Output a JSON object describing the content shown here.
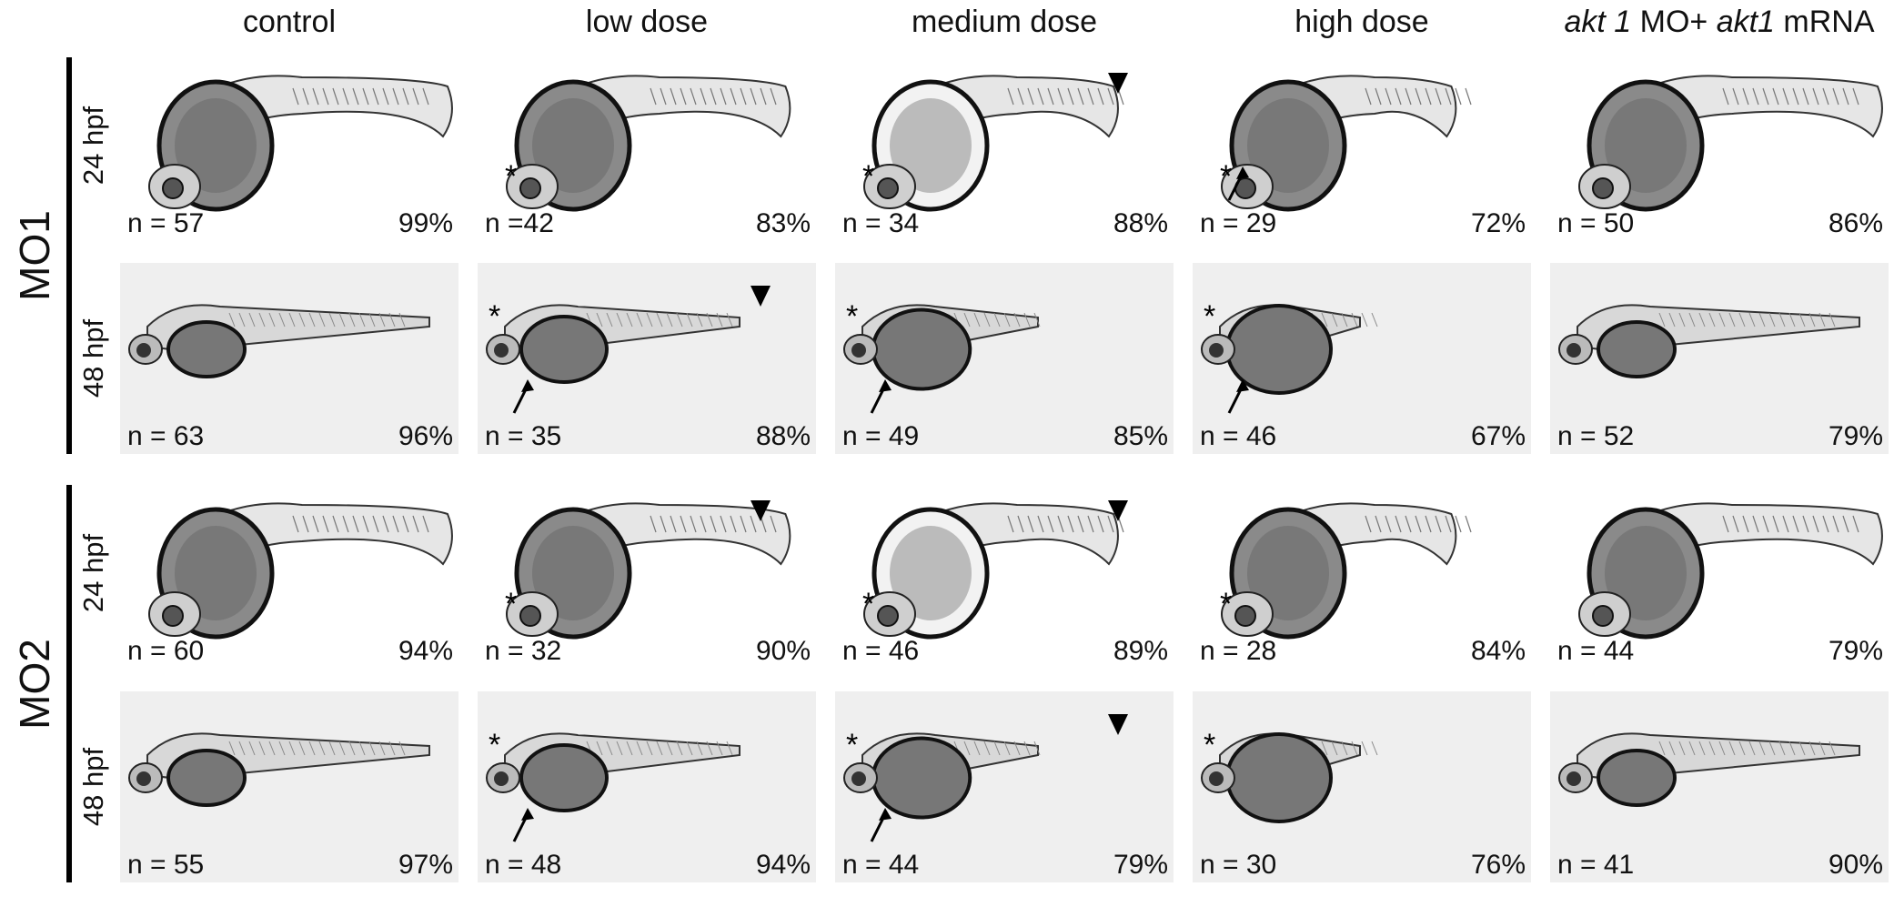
{
  "columns": [
    {
      "label": "control"
    },
    {
      "label": "low dose"
    },
    {
      "label": "medium dose"
    },
    {
      "label": "high dose"
    },
    {
      "label_parts": [
        "akt 1",
        " MO+ ",
        "akt1",
        " mRNA"
      ]
    }
  ],
  "groups": [
    {
      "label": "MO1",
      "rows": [
        {
          "label": "24 hpf",
          "stage": "24",
          "cells": [
            {
              "n": "n = 57",
              "pct": "99%",
              "star": false,
              "arrow": false,
              "arrowhead": false
            },
            {
              "n": "n =42",
              "pct": "83%",
              "star": true,
              "arrow": false,
              "arrowhead": false
            },
            {
              "n": "n = 34",
              "pct": "88%",
              "star": true,
              "arrow": false,
              "arrowhead": true
            },
            {
              "n": "n = 29",
              "pct": "72%",
              "star": true,
              "arrow": true,
              "arrowhead": false
            },
            {
              "n": "n = 50",
              "pct": "86%",
              "star": false,
              "arrow": false,
              "arrowhead": false
            }
          ]
        },
        {
          "label": "48 hpf",
          "stage": "48",
          "cells": [
            {
              "n": "n = 63",
              "pct": "96%",
              "star": false,
              "arrow": false,
              "arrowhead": false
            },
            {
              "n": "n = 35",
              "pct": "88%",
              "star": true,
              "arrow": true,
              "arrowhead": true
            },
            {
              "n": "n = 49",
              "pct": "85%",
              "star": true,
              "arrow": true,
              "arrowhead": false
            },
            {
              "n": "n = 46",
              "pct": "67%",
              "star": true,
              "arrow": true,
              "arrowhead": false
            },
            {
              "n": "n = 52",
              "pct": "79%",
              "star": false,
              "arrow": false,
              "arrowhead": false
            }
          ]
        }
      ]
    },
    {
      "label": "MO2",
      "rows": [
        {
          "label": "24 hpf",
          "stage": "24",
          "cells": [
            {
              "n": "n = 60",
              "pct": "94%",
              "star": false,
              "arrow": false,
              "arrowhead": false
            },
            {
              "n": "n = 32",
              "pct": "90%",
              "star": true,
              "arrow": false,
              "arrowhead": true
            },
            {
              "n": "n = 46",
              "pct": "89%",
              "star": true,
              "arrow": false,
              "arrowhead": true
            },
            {
              "n": "n = 28",
              "pct": "84%",
              "star": true,
              "arrow": false,
              "arrowhead": false
            },
            {
              "n": "n = 44",
              "pct": "79%",
              "star": false,
              "arrow": false,
              "arrowhead": false
            }
          ]
        },
        {
          "label": "48 hpf",
          "stage": "48",
          "cells": [
            {
              "n": "n = 55",
              "pct": "97%",
              "star": false,
              "arrow": false,
              "arrowhead": false
            },
            {
              "n": "n = 48",
              "pct": "94%",
              "star": true,
              "arrow": true,
              "arrowhead": false
            },
            {
              "n": "n = 44",
              "pct": "79%",
              "star": true,
              "arrow": true,
              "arrowhead": true
            },
            {
              "n": "n = 30",
              "pct": "76%",
              "star": true,
              "arrow": false,
              "arrowhead": false
            },
            {
              "n": "n = 41",
              "pct": "90%",
              "star": false,
              "arrow": false,
              "arrowhead": false
            }
          ]
        }
      ]
    }
  ],
  "colors": {
    "background": "#ffffff",
    "panel_48hpf": "#efefef",
    "ink": "#111111"
  }
}
